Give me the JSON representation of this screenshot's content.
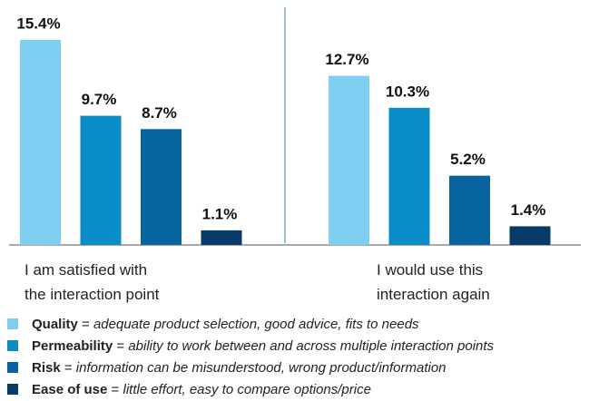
{
  "chart_data": {
    "type": "bar",
    "categories": [
      "I am satisfied with\nthe interaction point",
      "I would use this\ninteraction again"
    ],
    "series": [
      {
        "name": "Quality",
        "color": "#7fcff0",
        "values": [
          15.4,
          12.7
        ],
        "value_labels": [
          "15.4%",
          "12.7%"
        ],
        "description": "adequate product selection, good advice, fits to needs"
      },
      {
        "name": "Permeability",
        "color": "#0a8cc6",
        "values": [
          9.7,
          10.3
        ],
        "value_labels": [
          "9.7%",
          "10.3%"
        ],
        "description": "ability to work between and across multiple interaction points"
      },
      {
        "name": "Risk",
        "color": "#07649e",
        "values": [
          8.7,
          5.2
        ],
        "value_labels": [
          "8.7%",
          "5.2%"
        ],
        "description": "information can be misunderstood, wrong product/information"
      },
      {
        "name": "Ease of use",
        "color": "#073c6a",
        "values": [
          1.1,
          1.4
        ],
        "value_labels": [
          "1.1%",
          "1.4%"
        ],
        "description": "little effort, easy to compare options/price"
      }
    ],
    "legend_separator": "="
  }
}
